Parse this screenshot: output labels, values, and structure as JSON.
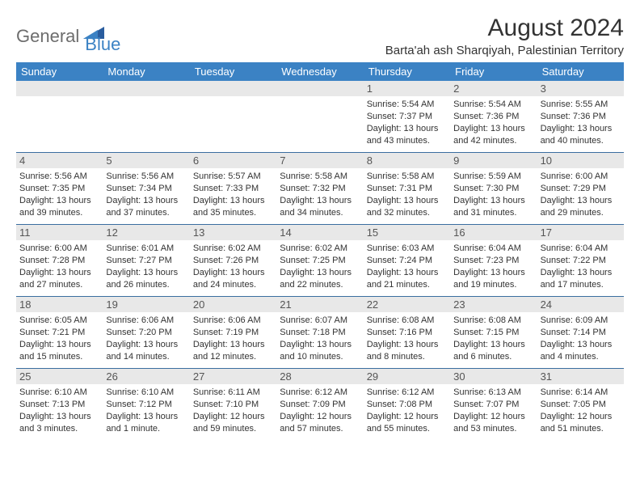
{
  "logo": {
    "general": "General",
    "blue": "Blue"
  },
  "title": "August 2024",
  "location": "Barta'ah ash Sharqiyah, Palestinian Territory",
  "colors": {
    "header_bg": "#3b82c4",
    "header_text": "#ffffff",
    "daynum_bg": "#e8e8e8",
    "week_border": "#3b6ea0",
    "logo_gray": "#6d6d6d",
    "logo_blue": "#3b82c4",
    "body_bg": "#ffffff",
    "text": "#333333"
  },
  "weekdays": [
    "Sunday",
    "Monday",
    "Tuesday",
    "Wednesday",
    "Thursday",
    "Friday",
    "Saturday"
  ],
  "weeks": [
    [
      {
        "n": "",
        "blank": true
      },
      {
        "n": "",
        "blank": true
      },
      {
        "n": "",
        "blank": true
      },
      {
        "n": "",
        "blank": true
      },
      {
        "n": "1",
        "sr": "Sunrise: 5:54 AM",
        "ss": "Sunset: 7:37 PM",
        "d1": "Daylight: 13 hours",
        "d2": "and 43 minutes."
      },
      {
        "n": "2",
        "sr": "Sunrise: 5:54 AM",
        "ss": "Sunset: 7:36 PM",
        "d1": "Daylight: 13 hours",
        "d2": "and 42 minutes."
      },
      {
        "n": "3",
        "sr": "Sunrise: 5:55 AM",
        "ss": "Sunset: 7:36 PM",
        "d1": "Daylight: 13 hours",
        "d2": "and 40 minutes."
      }
    ],
    [
      {
        "n": "4",
        "sr": "Sunrise: 5:56 AM",
        "ss": "Sunset: 7:35 PM",
        "d1": "Daylight: 13 hours",
        "d2": "and 39 minutes."
      },
      {
        "n": "5",
        "sr": "Sunrise: 5:56 AM",
        "ss": "Sunset: 7:34 PM",
        "d1": "Daylight: 13 hours",
        "d2": "and 37 minutes."
      },
      {
        "n": "6",
        "sr": "Sunrise: 5:57 AM",
        "ss": "Sunset: 7:33 PM",
        "d1": "Daylight: 13 hours",
        "d2": "and 35 minutes."
      },
      {
        "n": "7",
        "sr": "Sunrise: 5:58 AM",
        "ss": "Sunset: 7:32 PM",
        "d1": "Daylight: 13 hours",
        "d2": "and 34 minutes."
      },
      {
        "n": "8",
        "sr": "Sunrise: 5:58 AM",
        "ss": "Sunset: 7:31 PM",
        "d1": "Daylight: 13 hours",
        "d2": "and 32 minutes."
      },
      {
        "n": "9",
        "sr": "Sunrise: 5:59 AM",
        "ss": "Sunset: 7:30 PM",
        "d1": "Daylight: 13 hours",
        "d2": "and 31 minutes."
      },
      {
        "n": "10",
        "sr": "Sunrise: 6:00 AM",
        "ss": "Sunset: 7:29 PM",
        "d1": "Daylight: 13 hours",
        "d2": "and 29 minutes."
      }
    ],
    [
      {
        "n": "11",
        "sr": "Sunrise: 6:00 AM",
        "ss": "Sunset: 7:28 PM",
        "d1": "Daylight: 13 hours",
        "d2": "and 27 minutes."
      },
      {
        "n": "12",
        "sr": "Sunrise: 6:01 AM",
        "ss": "Sunset: 7:27 PM",
        "d1": "Daylight: 13 hours",
        "d2": "and 26 minutes."
      },
      {
        "n": "13",
        "sr": "Sunrise: 6:02 AM",
        "ss": "Sunset: 7:26 PM",
        "d1": "Daylight: 13 hours",
        "d2": "and 24 minutes."
      },
      {
        "n": "14",
        "sr": "Sunrise: 6:02 AM",
        "ss": "Sunset: 7:25 PM",
        "d1": "Daylight: 13 hours",
        "d2": "and 22 minutes."
      },
      {
        "n": "15",
        "sr": "Sunrise: 6:03 AM",
        "ss": "Sunset: 7:24 PM",
        "d1": "Daylight: 13 hours",
        "d2": "and 21 minutes."
      },
      {
        "n": "16",
        "sr": "Sunrise: 6:04 AM",
        "ss": "Sunset: 7:23 PM",
        "d1": "Daylight: 13 hours",
        "d2": "and 19 minutes."
      },
      {
        "n": "17",
        "sr": "Sunrise: 6:04 AM",
        "ss": "Sunset: 7:22 PM",
        "d1": "Daylight: 13 hours",
        "d2": "and 17 minutes."
      }
    ],
    [
      {
        "n": "18",
        "sr": "Sunrise: 6:05 AM",
        "ss": "Sunset: 7:21 PM",
        "d1": "Daylight: 13 hours",
        "d2": "and 15 minutes."
      },
      {
        "n": "19",
        "sr": "Sunrise: 6:06 AM",
        "ss": "Sunset: 7:20 PM",
        "d1": "Daylight: 13 hours",
        "d2": "and 14 minutes."
      },
      {
        "n": "20",
        "sr": "Sunrise: 6:06 AM",
        "ss": "Sunset: 7:19 PM",
        "d1": "Daylight: 13 hours",
        "d2": "and 12 minutes."
      },
      {
        "n": "21",
        "sr": "Sunrise: 6:07 AM",
        "ss": "Sunset: 7:18 PM",
        "d1": "Daylight: 13 hours",
        "d2": "and 10 minutes."
      },
      {
        "n": "22",
        "sr": "Sunrise: 6:08 AM",
        "ss": "Sunset: 7:16 PM",
        "d1": "Daylight: 13 hours",
        "d2": "and 8 minutes."
      },
      {
        "n": "23",
        "sr": "Sunrise: 6:08 AM",
        "ss": "Sunset: 7:15 PM",
        "d1": "Daylight: 13 hours",
        "d2": "and 6 minutes."
      },
      {
        "n": "24",
        "sr": "Sunrise: 6:09 AM",
        "ss": "Sunset: 7:14 PM",
        "d1": "Daylight: 13 hours",
        "d2": "and 4 minutes."
      }
    ],
    [
      {
        "n": "25",
        "sr": "Sunrise: 6:10 AM",
        "ss": "Sunset: 7:13 PM",
        "d1": "Daylight: 13 hours",
        "d2": "and 3 minutes."
      },
      {
        "n": "26",
        "sr": "Sunrise: 6:10 AM",
        "ss": "Sunset: 7:12 PM",
        "d1": "Daylight: 13 hours",
        "d2": "and 1 minute."
      },
      {
        "n": "27",
        "sr": "Sunrise: 6:11 AM",
        "ss": "Sunset: 7:10 PM",
        "d1": "Daylight: 12 hours",
        "d2": "and 59 minutes."
      },
      {
        "n": "28",
        "sr": "Sunrise: 6:12 AM",
        "ss": "Sunset: 7:09 PM",
        "d1": "Daylight: 12 hours",
        "d2": "and 57 minutes."
      },
      {
        "n": "29",
        "sr": "Sunrise: 6:12 AM",
        "ss": "Sunset: 7:08 PM",
        "d1": "Daylight: 12 hours",
        "d2": "and 55 minutes."
      },
      {
        "n": "30",
        "sr": "Sunrise: 6:13 AM",
        "ss": "Sunset: 7:07 PM",
        "d1": "Daylight: 12 hours",
        "d2": "and 53 minutes."
      },
      {
        "n": "31",
        "sr": "Sunrise: 6:14 AM",
        "ss": "Sunset: 7:05 PM",
        "d1": "Daylight: 12 hours",
        "d2": "and 51 minutes."
      }
    ]
  ]
}
